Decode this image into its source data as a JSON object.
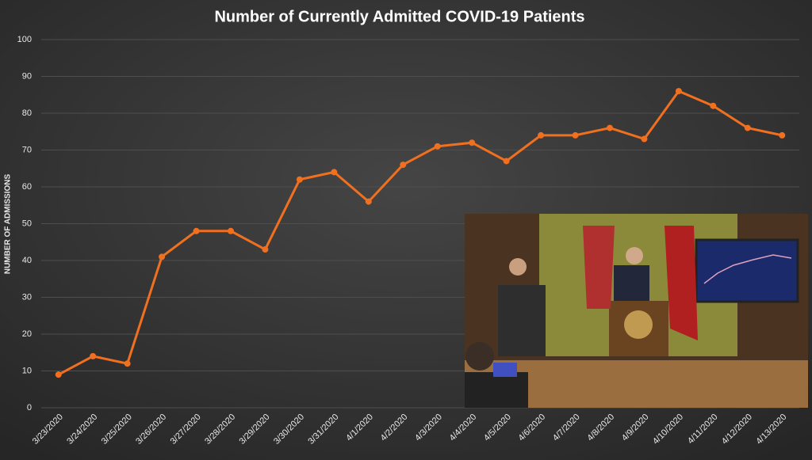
{
  "chart_data": {
    "type": "line",
    "title": "Number of Currently Admitted COVID-19 Patients",
    "y_label": "NUMBER OF ADMISSIONS",
    "categories": [
      "3/23/2020",
      "3/24/2020",
      "3/25/2020",
      "3/26/2020",
      "3/27/2020",
      "3/28/2020",
      "3/29/2020",
      "3/30/2020",
      "3/31/2020",
      "4/1/2020",
      "4/2/2020",
      "4/3/2020",
      "4/4/2020",
      "4/5/2020",
      "4/6/2020",
      "4/7/2020",
      "4/8/2020",
      "4/9/2020",
      "4/10/2020",
      "4/11/2020",
      "4/12/2020",
      "4/13/2020"
    ],
    "values": [
      9,
      14,
      12,
      41,
      48,
      48,
      43,
      62,
      64,
      56,
      66,
      71,
      72,
      67,
      74,
      74,
      76,
      73,
      86,
      82,
      76,
      74
    ],
    "color": "#f07020",
    "ylim": [
      0,
      100
    ],
    "yticks": [
      0,
      10,
      20,
      30,
      40,
      50,
      60,
      70,
      80,
      90,
      100
    ],
    "grid": true
  }
}
